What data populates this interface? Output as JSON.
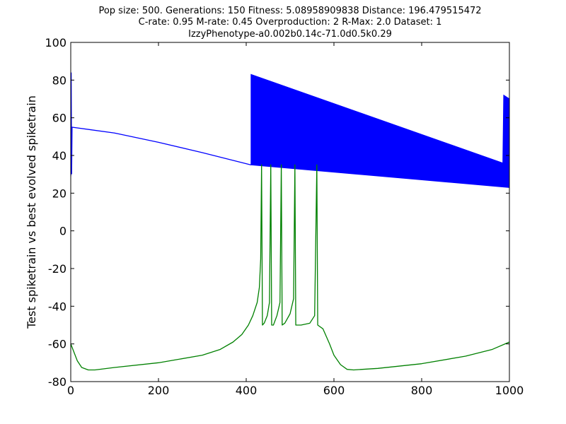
{
  "chart_data": {
    "type": "line",
    "title_lines": [
      "Pop size: 500. Generations: 150 Fitness: 5.08958909838 Distance: 196.479515472",
      "C-rate: 0.95 M-rate: 0.45 Overproduction: 2 R-Max: 2.0 Dataset: 1",
      "IzzyPhenotype-a0.002b0.14c-71.0d0.5k0.29"
    ],
    "xlabel": "",
    "ylabel": "Test spiketrain vs best evolved spiketrain",
    "xlim": [
      0,
      1000
    ],
    "ylim": [
      -80,
      100
    ],
    "xticks": [
      0,
      200,
      400,
      600,
      800,
      1000
    ],
    "yticks": [
      -80,
      -60,
      -40,
      -20,
      0,
      20,
      40,
      60,
      80,
      100
    ],
    "grid": false,
    "legend": "none",
    "series": [
      {
        "color": "#0000ff",
        "description_points": [
          [
            0,
            29
          ],
          [
            1,
            84
          ],
          [
            2,
            30
          ],
          [
            3,
            55
          ],
          [
            100,
            51.9
          ],
          [
            200,
            47.0
          ],
          [
            300,
            41.5
          ],
          [
            411,
            35
          ],
          [
            411,
            83
          ],
          [
            600,
            68
          ],
          [
            800,
            52
          ],
          [
            985,
            36
          ],
          [
            987,
            72
          ],
          [
            1000,
            70
          ]
        ],
        "dense_band": {
          "x_start": 411,
          "x_end": 1000,
          "lower_start": 35,
          "lower_end": 23,
          "upper_start": 83,
          "upper_end": 35
        }
      },
      {
        "color": "#008000",
        "points": [
          [
            0,
            -60
          ],
          [
            5,
            -63
          ],
          [
            15,
            -69
          ],
          [
            25,
            -72.5
          ],
          [
            40,
            -73.8
          ],
          [
            55,
            -73.8
          ],
          [
            100,
            -72.5
          ],
          [
            200,
            -70
          ],
          [
            300,
            -66
          ],
          [
            340,
            -63
          ],
          [
            370,
            -59
          ],
          [
            390,
            -55
          ],
          [
            405,
            -50
          ],
          [
            415,
            -45
          ],
          [
            425,
            -38
          ],
          [
            430,
            -30
          ],
          [
            433,
            -15
          ],
          [
            435,
            35
          ],
          [
            437,
            -50
          ],
          [
            441,
            -49
          ],
          [
            448,
            -45
          ],
          [
            453,
            -38
          ],
          [
            456,
            35
          ],
          [
            458,
            -50
          ],
          [
            462,
            -50
          ],
          [
            470,
            -45
          ],
          [
            477,
            -38
          ],
          [
            480,
            35
          ],
          [
            482,
            -50
          ],
          [
            488,
            -49
          ],
          [
            500,
            -44
          ],
          [
            508,
            -36
          ],
          [
            511,
            35
          ],
          [
            513,
            -50
          ],
          [
            525,
            -50
          ],
          [
            545,
            -49
          ],
          [
            556,
            -45
          ],
          [
            561,
            35
          ],
          [
            563,
            -50
          ],
          [
            575,
            -52
          ],
          [
            590,
            -60
          ],
          [
            600,
            -66
          ],
          [
            615,
            -71
          ],
          [
            630,
            -73.5
          ],
          [
            645,
            -73.8
          ],
          [
            700,
            -73
          ],
          [
            800,
            -70.5
          ],
          [
            900,
            -66.5
          ],
          [
            960,
            -63
          ],
          [
            1000,
            -59
          ]
        ]
      }
    ]
  }
}
